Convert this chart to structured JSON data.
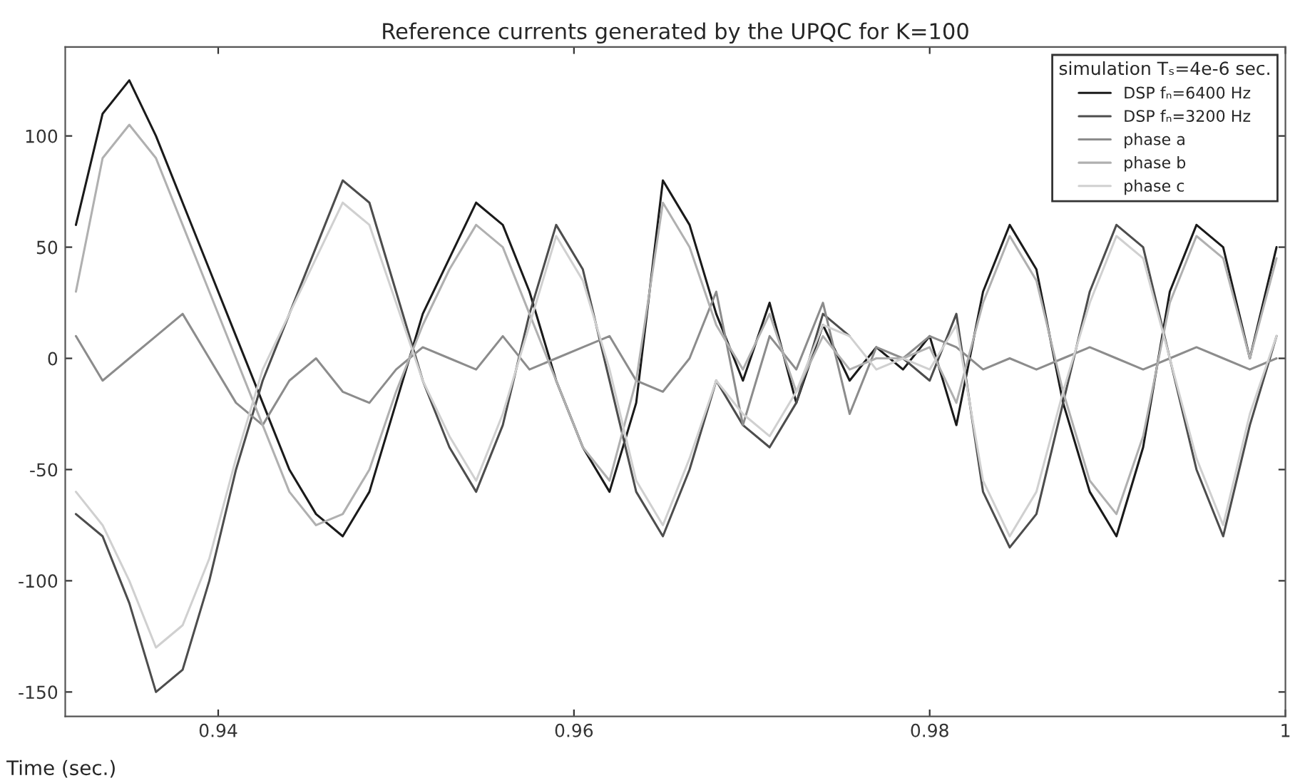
{
  "chart_data": {
    "type": "line",
    "title": "Reference currents generated by the UPQC for K=100",
    "xlabel": "Time (sec.)",
    "x": [
      0.932,
      0.9335,
      0.935,
      0.9365,
      0.938,
      0.9395,
      0.941,
      0.9425,
      0.944,
      0.9455,
      0.947,
      0.9485,
      0.95,
      0.9515,
      0.953,
      0.9545,
      0.956,
      0.9575,
      0.959,
      0.9605,
      0.962,
      0.9635,
      0.965,
      0.9665,
      0.968,
      0.9695,
      0.971,
      0.9725,
      0.974,
      0.9755,
      0.977,
      0.9785,
      0.98,
      0.9815,
      0.983,
      0.9845,
      0.986,
      0.9875,
      0.989,
      0.9905,
      0.992,
      0.9935,
      0.995,
      0.9965,
      0.998,
      0.9995
    ],
    "series": [
      {
        "name": "DSP fₙ=6400 Hz",
        "color": "#1a1a1a",
        "values": [
          60,
          110,
          125,
          100,
          70,
          40,
          10,
          -20,
          -50,
          -70,
          -80,
          -60,
          -20,
          20,
          45,
          70,
          60,
          30,
          -10,
          -40,
          -60,
          -20,
          80,
          60,
          20,
          -10,
          25,
          -20,
          15,
          -10,
          5,
          -5,
          10,
          -30,
          30,
          60,
          40,
          -20,
          -60,
          -80,
          -40,
          30,
          60,
          50,
          0,
          50
        ]
      },
      {
        "name": "DSP fₙ=3200 Hz",
        "color": "#4d4d4d",
        "values": [
          -70,
          -80,
          -110,
          -150,
          -140,
          -100,
          -50,
          -10,
          20,
          50,
          80,
          70,
          30,
          -10,
          -40,
          -60,
          -30,
          20,
          60,
          40,
          -10,
          -60,
          -80,
          -50,
          -10,
          -30,
          -40,
          -20,
          20,
          10,
          null,
          0,
          -10,
          20,
          -60,
          -85,
          -70,
          -20,
          30,
          60,
          50,
          0,
          -50,
          -80,
          -30,
          10
        ]
      },
      {
        "name": "phase a",
        "color": "#8c8c8c",
        "values": [
          10,
          -10,
          0,
          10,
          20,
          0,
          -20,
          -30,
          -10,
          0,
          -15,
          -20,
          -5,
          5,
          0,
          -5,
          10,
          -5,
          0,
          5,
          10,
          -10,
          -15,
          0,
          30,
          -30,
          10,
          -5,
          25,
          -25,
          5,
          0,
          10,
          5,
          -5,
          0,
          -5,
          0,
          5,
          0,
          -5,
          0,
          5,
          0,
          -5,
          0
        ]
      },
      {
        "name": "phase b",
        "color": "#b0b0b0",
        "values": [
          30,
          90,
          105,
          90,
          60,
          30,
          0,
          -30,
          -60,
          -75,
          -70,
          -50,
          -15,
          15,
          40,
          60,
          50,
          20,
          -10,
          -40,
          -55,
          -10,
          70,
          50,
          15,
          -5,
          20,
          -15,
          10,
          -5,
          0,
          0,
          5,
          -20,
          25,
          55,
          35,
          -15,
          -55,
          -70,
          -35,
          25,
          55,
          45,
          0,
          45
        ]
      },
      {
        "name": "phase c",
        "color": "#d0d0d0",
        "values": [
          -60,
          -75,
          -100,
          -130,
          -120,
          -90,
          -45,
          -5,
          20,
          45,
          70,
          60,
          25,
          -10,
          -35,
          -55,
          -25,
          15,
          55,
          35,
          -5,
          -55,
          -75,
          -45,
          -10,
          -25,
          -35,
          -15,
          15,
          10,
          -5,
          0,
          -5,
          15,
          -55,
          -80,
          -60,
          -15,
          25,
          55,
          45,
          0,
          -45,
          -75,
          -25,
          10
        ]
      }
    ],
    "legend_title": "simulation Tₛ=4e-6 sec.",
    "xlim": [
      0.9314,
      1.0
    ],
    "ylim": [
      -161,
      140
    ],
    "xticks": [
      0.94,
      0.96,
      0.98,
      1
    ],
    "yticks": [
      -150,
      -100,
      -50,
      0,
      50,
      100
    ],
    "grid": false,
    "legend": "top right"
  }
}
